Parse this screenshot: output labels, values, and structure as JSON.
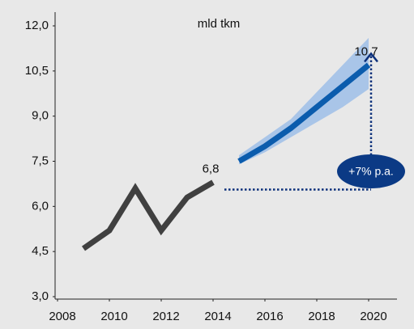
{
  "chart_data": {
    "type": "line",
    "title": "mld tkm",
    "annotation": "+7% p.a.",
    "xlim": [
      2008,
      2020
    ],
    "xticks": [
      2008,
      2010,
      2012,
      2014,
      2016,
      2018,
      2020
    ],
    "ylim": [
      3,
      12
    ],
    "yticks": [
      {
        "value": 3,
        "label": "3,0"
      },
      {
        "value": 4.5,
        "label": "4,5"
      },
      {
        "value": 6,
        "label": "6,0"
      },
      {
        "value": 7.5,
        "label": "7,5"
      },
      {
        "value": 9,
        "label": "9,0"
      },
      {
        "value": 10.5,
        "label": "10,5"
      },
      {
        "value": 12,
        "label": "12,0"
      }
    ],
    "band": {
      "color": "#a9c5e8",
      "x": [
        2015,
        2016,
        2017,
        2018,
        2019,
        2020
      ],
      "lower": [
        7.4,
        7.8,
        8.3,
        8.8,
        9.3,
        9.9
      ],
      "upper": [
        7.7,
        8.3,
        8.9,
        9.8,
        10.7,
        11.6
      ]
    },
    "series": [
      {
        "color": "#404040",
        "x": [
          2009,
          2010,
          2011,
          2012,
          2013,
          2014
        ],
        "values": [
          4.6,
          5.2,
          6.6,
          5.2,
          6.3,
          6.8
        ],
        "value_labels": [
          null,
          null,
          null,
          null,
          null,
          "6,8"
        ]
      },
      {
        "color": "#0b5cad",
        "x": [
          2015,
          2016,
          2017,
          2018,
          2019,
          2020
        ],
        "values": [
          7.5,
          8.0,
          8.6,
          9.3,
          10.0,
          10.7
        ],
        "value_labels": [
          null,
          null,
          null,
          null,
          null,
          "10,7"
        ]
      }
    ]
  }
}
